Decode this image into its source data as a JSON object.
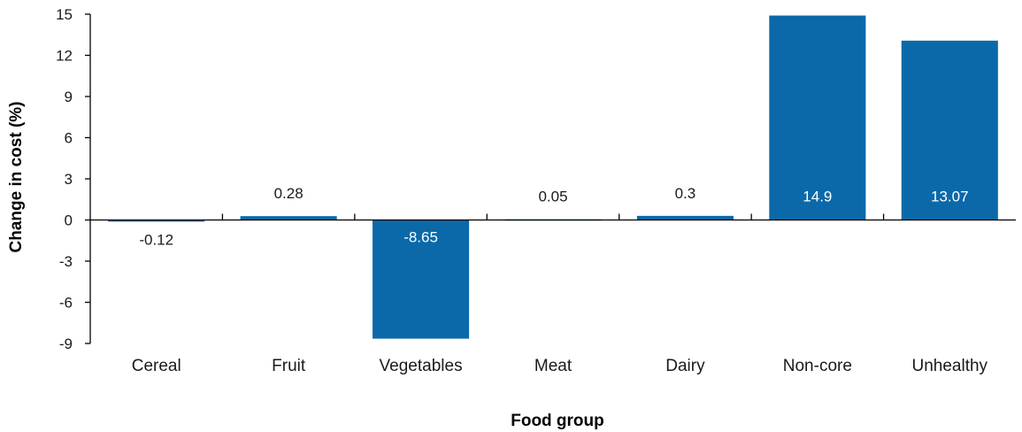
{
  "chart_data": {
    "type": "bar",
    "categories": [
      "Cereal",
      "Fruit",
      "Vegetables",
      "Meat",
      "Dairy",
      "Non-core",
      "Unhealthy"
    ],
    "values": [
      -0.12,
      0.28,
      -8.65,
      0.05,
      0.3,
      14.9,
      13.07
    ],
    "data_labels": [
      "-0.12",
      "0.28",
      "-8.65",
      "0.05",
      "0.3",
      "14.9",
      "13.07"
    ],
    "xlabel": "Food group",
    "ylabel": "Change in cost (%)",
    "ylim": [
      -9,
      15
    ],
    "yticks": [
      "15",
      "12",
      "9",
      "6",
      "3",
      "0",
      "-3",
      "-6",
      "-9"
    ],
    "grid": false,
    "legend": "none",
    "colors": {
      "bar": "#0b69aa",
      "axis": "#000000",
      "label_inside": "#ffffff",
      "label_outside": "#1a1a1a"
    }
  }
}
